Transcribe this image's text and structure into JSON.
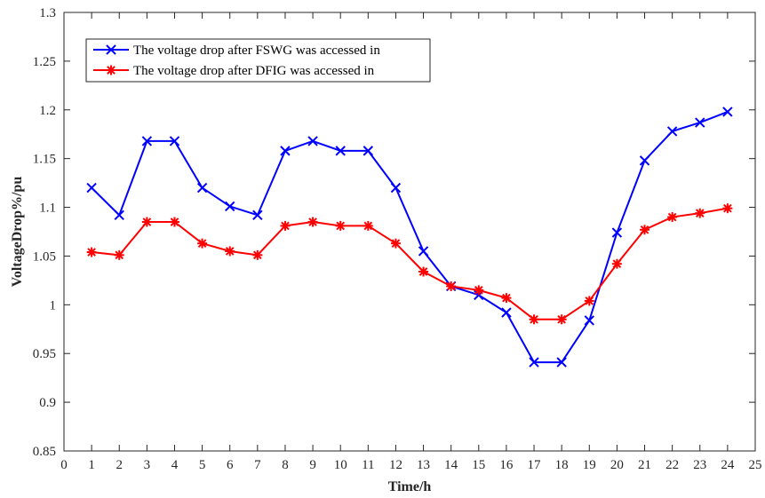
{
  "chart_data": {
    "type": "line",
    "xlabel": "Time/h",
    "ylabel": "VoltageDrop%/pu",
    "xlim": [
      0,
      25
    ],
    "ylim": [
      0.85,
      1.3
    ],
    "xticks": [
      0,
      1,
      2,
      3,
      4,
      5,
      6,
      7,
      8,
      9,
      10,
      11,
      12,
      13,
      14,
      15,
      16,
      17,
      18,
      19,
      20,
      21,
      22,
      23,
      24,
      25
    ],
    "yticks": [
      0.85,
      0.9,
      0.95,
      1,
      1.05,
      1.1,
      1.15,
      1.2,
      1.25,
      1.3
    ],
    "ytick_labels": [
      "0.85",
      "0.9",
      "0.95",
      "1",
      "1.05",
      "1.1",
      "1.15",
      "1.2",
      "1.25",
      "1.3"
    ],
    "grid": false,
    "legend_position": "top-left",
    "x": [
      1,
      2,
      3,
      4,
      5,
      6,
      7,
      8,
      9,
      10,
      11,
      12,
      13,
      14,
      15,
      16,
      17,
      18,
      19,
      20,
      21,
      22,
      23,
      24
    ],
    "series": [
      {
        "name": "The voltage drop after FSWG was accessed in",
        "color": "#0000ff",
        "marker": "x",
        "values": [
          1.12,
          1.092,
          1.168,
          1.168,
          1.12,
          1.101,
          1.092,
          1.158,
          1.168,
          1.158,
          1.158,
          1.12,
          1.055,
          1.019,
          1.01,
          0.992,
          0.941,
          0.941,
          0.984,
          1.074,
          1.148,
          1.178,
          1.187,
          1.198
        ]
      },
      {
        "name": "The voltage drop after DFIG was accessed in",
        "color": "#ff0000",
        "marker": "asterisk",
        "values": [
          1.054,
          1.051,
          1.085,
          1.085,
          1.063,
          1.055,
          1.051,
          1.081,
          1.085,
          1.081,
          1.081,
          1.063,
          1.034,
          1.019,
          1.015,
          1.007,
          0.985,
          0.985,
          1.004,
          1.042,
          1.077,
          1.09,
          1.094,
          1.099
        ]
      }
    ]
  }
}
